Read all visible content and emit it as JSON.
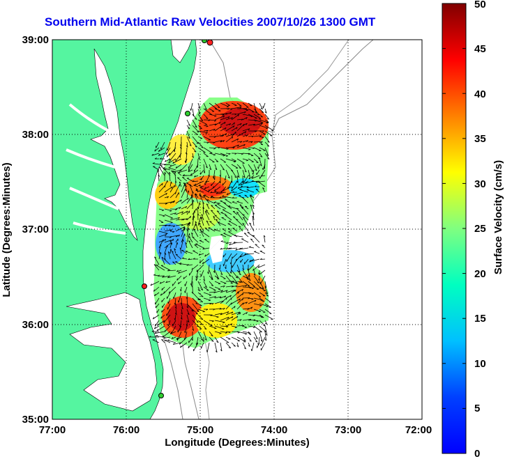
{
  "title": "Southern Mid-Atlantic Raw Velocities 2007/10/26 1300 GMT",
  "map": {
    "xlabel": "Longitude (Degrees:Minutes)",
    "ylabel": "Latitude (Degrees:Minutes)",
    "lon_ticks": [
      "77:00",
      "76:00",
      "75:00",
      "74:00",
      "73:00",
      "72:00"
    ],
    "lat_ticks": [
      "39:00",
      "38:00",
      "37:00",
      "36:00",
      "35:00"
    ],
    "lon_range": [
      -77,
      -72
    ],
    "lat_range": [
      35,
      39
    ],
    "grid": true,
    "land_color": "#55f5a0",
    "water_color": "#ffffff"
  },
  "colorbar": {
    "label": "Surface Velocity (cm/s)",
    "ticks": [
      "50",
      "45",
      "40",
      "35",
      "30",
      "25",
      "20",
      "15",
      "10",
      "5",
      "0"
    ],
    "range": [
      0,
      50
    ],
    "colormap": "jet"
  }
}
